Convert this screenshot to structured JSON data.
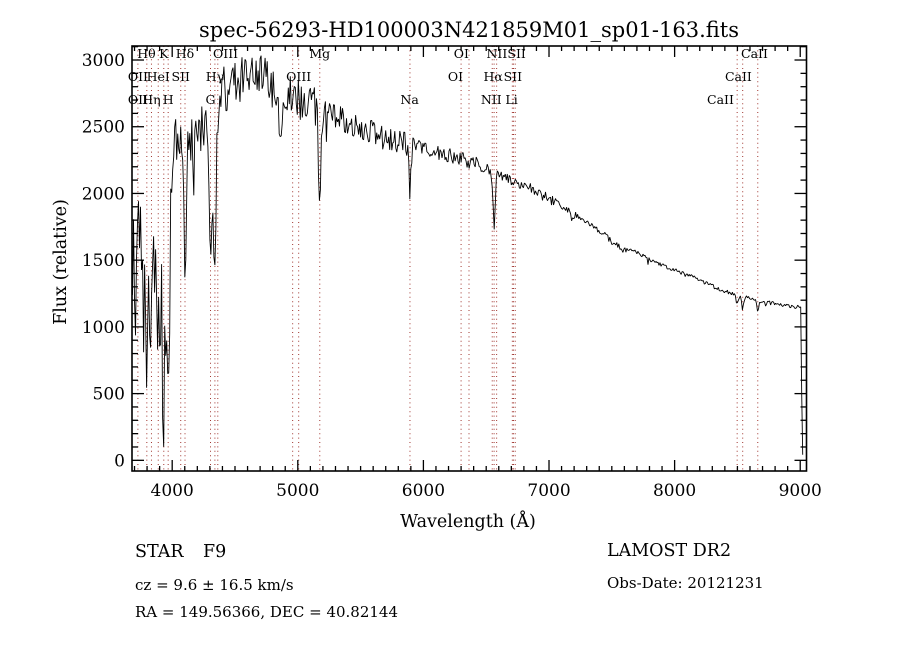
{
  "title": "spec-56293-HD100003N421859M01_sp01-163.fits",
  "annotations": {
    "object_type": "STAR",
    "subclass": "F9",
    "survey": "LAMOST DR2",
    "cz_line": "cz = 9.6 ± 16.5 km/s",
    "obs_date_line": "Obs-Date: 20121231",
    "radec_line": "RA = 149.56366, DEC =  40.82144"
  },
  "chart_data": {
    "type": "line",
    "title": "spec-56293-HD100003N421859M01_sp01-163.fits",
    "xlabel": "Wavelength (Å)",
    "ylabel": "Flux (relative)",
    "xlim": [
      3680,
      9050
    ],
    "ylim": [
      -80,
      3105
    ],
    "xticks": [
      4000,
      5000,
      6000,
      7000,
      8000,
      9000
    ],
    "yticks": [
      0,
      500,
      1000,
      1500,
      2000,
      2500,
      3000
    ],
    "minor_x_step": 100,
    "minor_y_step": 100,
    "grid": false,
    "colors": {
      "spectrum": "#000000",
      "line_marker": "#a0342e",
      "background": "#ffffff",
      "frame": "#000000"
    },
    "spectral_line_markers": [
      3727,
      3798,
      3835,
      3889,
      3933,
      3968,
      4068,
      4102,
      4305,
      4340,
      4363,
      4959,
      5007,
      5175,
      5893,
      6300,
      6363,
      6548,
      6563,
      6583,
      6708,
      6717,
      6731,
      8498,
      8542,
      8662
    ],
    "line_labels": [
      {
        "text": "Hθ",
        "row": 1,
        "lambda": 3795
      },
      {
        "text": "K",
        "row": 1,
        "lambda": 3933
      },
      {
        "text": "Hδ",
        "row": 1,
        "lambda": 4102
      },
      {
        "text": "OIII",
        "row": 1,
        "lambda": 4425
      },
      {
        "text": "Mg",
        "row": 1,
        "lambda": 5175
      },
      {
        "text": "OI",
        "row": 1,
        "lambda": 6302
      },
      {
        "text": "NII",
        "row": 1,
        "lambda": 6585
      },
      {
        "text": "SII",
        "row": 1,
        "lambda": 6742
      },
      {
        "text": "CaII",
        "row": 1,
        "lambda": 8636
      },
      {
        "text": "OII",
        "row": 2,
        "lambda": 3727
      },
      {
        "text": "HeI",
        "row": 2,
        "lambda": 3889
      },
      {
        "text": "SII",
        "row": 2,
        "lambda": 4068
      },
      {
        "text": "Hγ",
        "row": 2,
        "lambda": 4340
      },
      {
        "text": "OIII",
        "row": 2,
        "lambda": 5007
      },
      {
        "text": "OI",
        "row": 2,
        "lambda": 6255
      },
      {
        "text": "Hα",
        "row": 2,
        "lambda": 6555
      },
      {
        "text": "SII",
        "row": 2,
        "lambda": 6712
      },
      {
        "text": "CaII",
        "row": 2,
        "lambda": 8508
      },
      {
        "text": "OII",
        "row": 3,
        "lambda": 3727
      },
      {
        "text": "Hη",
        "row": 3,
        "lambda": 3835
      },
      {
        "text": "H",
        "row": 3,
        "lambda": 3968
      },
      {
        "text": "G",
        "row": 3,
        "lambda": 4305
      },
      {
        "text": "Na",
        "row": 3,
        "lambda": 5890
      },
      {
        "text": "NII",
        "row": 3,
        "lambda": 6540
      },
      {
        "text": "Li",
        "row": 3,
        "lambda": 6702
      },
      {
        "text": "CaII",
        "row": 3,
        "lambda": 8365
      }
    ],
    "spectrum": {
      "description": "continuum anchor points [wavelength_A, flux_relative]; jagged noise and absorption dips applied on top",
      "anchors": [
        [
          3684,
          1950
        ],
        [
          3688,
          1100
        ],
        [
          3692,
          1500
        ],
        [
          3700,
          1300
        ],
        [
          3710,
          1450
        ],
        [
          3725,
          1350
        ],
        [
          3740,
          1550
        ],
        [
          3755,
          1300
        ],
        [
          3770,
          1600
        ],
        [
          3790,
          1450
        ],
        [
          3810,
          1500
        ],
        [
          3830,
          1400
        ],
        [
          3850,
          1450
        ],
        [
          3870,
          1350
        ],
        [
          3890,
          1380
        ],
        [
          3910,
          1350
        ],
        [
          3930,
          1250
        ],
        [
          3950,
          1250
        ],
        [
          3968,
          1300
        ],
        [
          3980,
          1700
        ],
        [
          3995,
          2150
        ],
        [
          4010,
          2350
        ],
        [
          4050,
          2420
        ],
        [
          4090,
          2400
        ],
        [
          4130,
          2360
        ],
        [
          4170,
          2390
        ],
        [
          4210,
          2430
        ],
        [
          4250,
          2500
        ],
        [
          4290,
          2560
        ],
        [
          4330,
          2630
        ],
        [
          4370,
          2710
        ],
        [
          4420,
          2770
        ],
        [
          4470,
          2820
        ],
        [
          4520,
          2850
        ],
        [
          4570,
          2880
        ],
        [
          4620,
          2900
        ],
        [
          4670,
          2900
        ],
        [
          4720,
          2880
        ],
        [
          4770,
          2850
        ],
        [
          4820,
          2820
        ],
        [
          4870,
          2790
        ],
        [
          4920,
          2750
        ],
        [
          4970,
          2720
        ],
        [
          5020,
          2700
        ],
        [
          5070,
          2680
        ],
        [
          5120,
          2660
        ],
        [
          5170,
          2640
        ],
        [
          5220,
          2620
        ],
        [
          5270,
          2600
        ],
        [
          5320,
          2575
        ],
        [
          5370,
          2550
        ],
        [
          5420,
          2525
        ],
        [
          5470,
          2505
        ],
        [
          5520,
          2485
        ],
        [
          5570,
          2465
        ],
        [
          5620,
          2450
        ],
        [
          5670,
          2435
        ],
        [
          5720,
          2415
        ],
        [
          5770,
          2400
        ],
        [
          5820,
          2390
        ],
        [
          5870,
          2375
        ],
        [
          5920,
          2360
        ],
        [
          5970,
          2345
        ],
        [
          6020,
          2330
        ],
        [
          6070,
          2315
        ],
        [
          6120,
          2300
        ],
        [
          6170,
          2290
        ],
        [
          6220,
          2280
        ],
        [
          6270,
          2270
        ],
        [
          6320,
          2255
        ],
        [
          6370,
          2240
        ],
        [
          6420,
          2225
        ],
        [
          6470,
          2210
        ],
        [
          6520,
          2195
        ],
        [
          6570,
          2165
        ],
        [
          6620,
          2135
        ],
        [
          6670,
          2110
        ],
        [
          6720,
          2090
        ],
        [
          6770,
          2075
        ],
        [
          6820,
          2055
        ],
        [
          6870,
          2030
        ],
        [
          6920,
          2000
        ],
        [
          6970,
          1975
        ],
        [
          7020,
          1950
        ],
        [
          7070,
          1925
        ],
        [
          7120,
          1895
        ],
        [
          7170,
          1865
        ],
        [
          7220,
          1835
        ],
        [
          7270,
          1805
        ],
        [
          7320,
          1775
        ],
        [
          7370,
          1740
        ],
        [
          7420,
          1705
        ],
        [
          7470,
          1665
        ],
        [
          7520,
          1625
        ],
        [
          7570,
          1590
        ],
        [
          7610,
          1575
        ],
        [
          7650,
          1590
        ],
        [
          7690,
          1560
        ],
        [
          7740,
          1540
        ],
        [
          7790,
          1515
        ],
        [
          7840,
          1490
        ],
        [
          7890,
          1465
        ],
        [
          7940,
          1445
        ],
        [
          7990,
          1430
        ],
        [
          8040,
          1412
        ],
        [
          8090,
          1395
        ],
        [
          8140,
          1378
        ],
        [
          8190,
          1355
        ],
        [
          8240,
          1330
        ],
        [
          8290,
          1308
        ],
        [
          8340,
          1290
        ],
        [
          8390,
          1272
        ],
        [
          8440,
          1255
        ],
        [
          8490,
          1240
        ],
        [
          8540,
          1228
        ],
        [
          8590,
          1215
        ],
        [
          8640,
          1202
        ],
        [
          8690,
          1190
        ],
        [
          8740,
          1182
        ],
        [
          8790,
          1174
        ],
        [
          8840,
          1166
        ],
        [
          8890,
          1158
        ],
        [
          8940,
          1152
        ],
        [
          8990,
          1147
        ],
        [
          9006,
          1143
        ],
        [
          9010,
          1000
        ],
        [
          9012,
          500
        ],
        [
          9014,
          60
        ],
        [
          9020,
          40
        ]
      ],
      "absorption_features": [
        {
          "center": 3798,
          "depth": 380,
          "sigma": 8
        },
        {
          "center": 3835,
          "depth": 520,
          "sigma": 8
        },
        {
          "center": 3889,
          "depth": 300,
          "sigma": 8
        },
        {
          "center": 3933,
          "depth": 720,
          "sigma": 9
        },
        {
          "center": 3968,
          "depth": 650,
          "sigma": 9
        },
        {
          "center": 4102,
          "depth": 950,
          "sigma": 10
        },
        {
          "center": 4305,
          "depth": 950,
          "sigma": 13
        },
        {
          "center": 4340,
          "depth": 1120,
          "sigma": 10
        },
        {
          "center": 4861,
          "depth": 470,
          "sigma": 11
        },
        {
          "center": 5175,
          "depth": 720,
          "sigma": 10
        },
        {
          "center": 5893,
          "depth": 330,
          "sigma": 9
        },
        {
          "center": 6563,
          "depth": 430,
          "sigma": 9
        },
        {
          "center": 7186,
          "depth": 60,
          "sigma": 10
        },
        {
          "center": 8498,
          "depth": 70,
          "sigma": 7
        },
        {
          "center": 8542,
          "depth": 95,
          "sigma": 7
        },
        {
          "center": 8662,
          "depth": 85,
          "sigma": 7
        }
      ],
      "noise_segments": [
        {
          "from": 3680,
          "to": 3988,
          "amp": 500,
          "spike_prob": 0.3,
          "spike_amp": 450
        },
        {
          "from": 3988,
          "to": 4290,
          "amp": 200,
          "spike_prob": 0.1,
          "spike_amp": 280
        },
        {
          "from": 4290,
          "to": 4470,
          "amp": 190,
          "spike_prob": 0.08,
          "spike_amp": 240
        },
        {
          "from": 4470,
          "to": 5260,
          "amp": 150,
          "spike_prob": 0.06,
          "spike_amp": 200
        },
        {
          "from": 5260,
          "to": 5930,
          "amp": 90,
          "spike_prob": 0.05,
          "spike_amp": 110
        },
        {
          "from": 5930,
          "to": 6570,
          "amp": 55,
          "spike_prob": 0.04,
          "spike_amp": 70
        },
        {
          "from": 6570,
          "to": 7060,
          "amp": 38,
          "spike_prob": 0.03,
          "spike_amp": 50
        },
        {
          "from": 7060,
          "to": 7630,
          "amp": 24,
          "spike_prob": 0.03,
          "spike_amp": 35
        },
        {
          "from": 7630,
          "to": 9008,
          "amp": 15,
          "spike_prob": 0.04,
          "spike_amp": 45
        },
        {
          "from": 9008,
          "to": 9022,
          "amp": 6,
          "spike_prob": 0.0,
          "spike_amp": 0
        }
      ],
      "sample_step": 8,
      "seed": 1987,
      "flux_clamp": [
        25,
        3088
      ]
    }
  }
}
